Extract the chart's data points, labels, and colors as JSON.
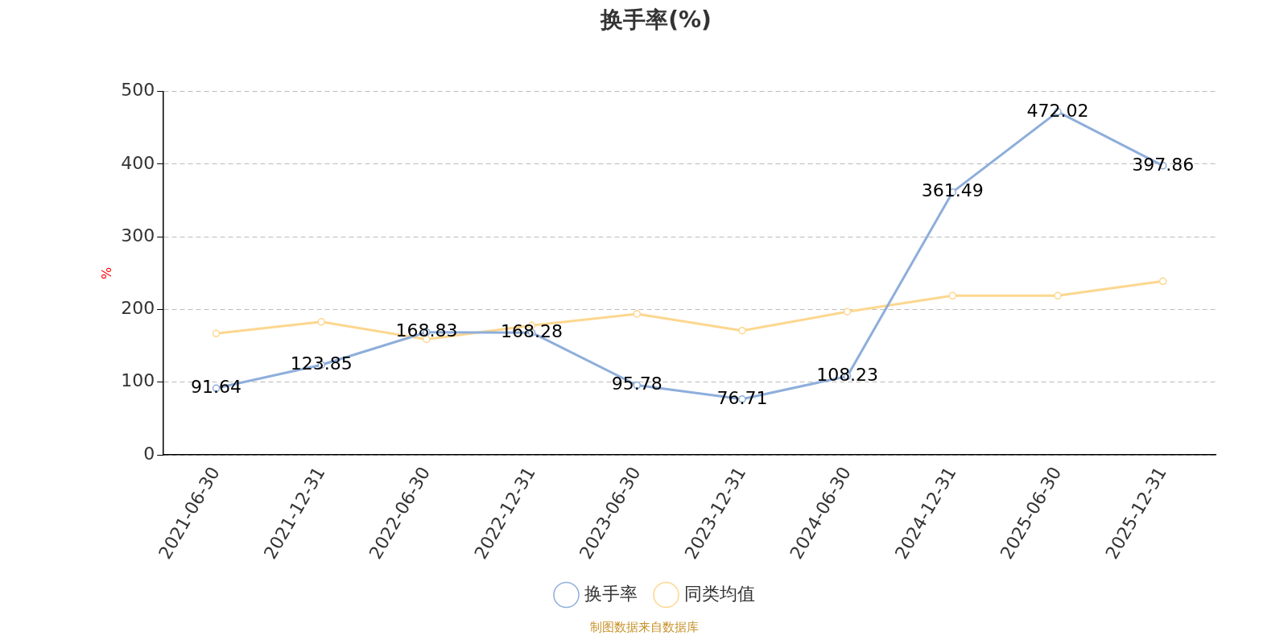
{
  "chart_data": {
    "type": "line",
    "title": "换手率(%)",
    "ylabel": "%",
    "categories": [
      "2021-06-30",
      "2021-12-31",
      "2022-06-30",
      "2022-12-31",
      "2023-06-30",
      "2023-12-31",
      "2024-06-30",
      "2024-12-31",
      "2025-06-30",
      "2025-12-31"
    ],
    "series": [
      {
        "name": "换手率",
        "color": "#8eaedb",
        "values": [
          91.64,
          123.85,
          168.83,
          168.28,
          95.78,
          76.71,
          108.23,
          361.49,
          472.02,
          397.86
        ],
        "value_labels": [
          "91.64",
          "123.85",
          "168.83",
          "168.28",
          "95.78",
          "76.71",
          "108.23",
          "361.49",
          "472.02",
          "397.86"
        ]
      },
      {
        "name": "同类均值",
        "color": "#fdd78f",
        "values": [
          167,
          183,
          159,
          178,
          194,
          171,
          197,
          219,
          219,
          239
        ]
      }
    ],
    "ylim": [
      0,
      500
    ],
    "yticks": [
      0,
      100,
      200,
      300,
      400,
      500
    ],
    "grid": "y",
    "legend": "bottom",
    "marker": "circle",
    "line_style": "solid",
    "annotations": [
      "制图数据来自数据库"
    ]
  }
}
